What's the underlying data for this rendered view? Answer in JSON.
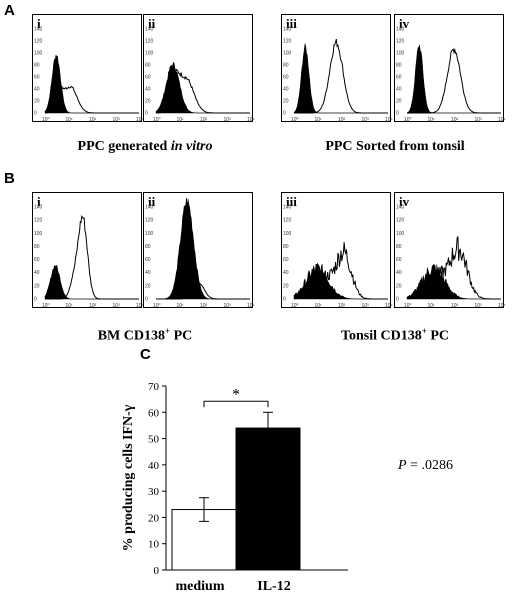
{
  "panel_a": {
    "letter": "A",
    "plots": [
      {
        "label": "i"
      },
      {
        "label": "ii"
      },
      {
        "label": "iii"
      },
      {
        "label": "iv"
      }
    ],
    "caption_left_prefix": "PPC generated ",
    "caption_left_italic": "in vitro",
    "caption_right": "PPC Sorted from tonsil"
  },
  "panel_b": {
    "letter": "B",
    "plots": [
      {
        "label": "i"
      },
      {
        "label": "ii"
      },
      {
        "label": "iii"
      },
      {
        "label": "iv"
      }
    ],
    "caption_left_prefix": "BM CD138",
    "caption_left_sup": "+",
    "caption_left_suffix": " PC",
    "caption_right_prefix": "Tonsil CD138",
    "caption_right_sup": "+",
    "caption_right_suffix": " PC"
  },
  "hist_axes": {
    "y_ticks": [
      "0",
      "20",
      "40",
      "60",
      "80",
      "100",
      "120",
      "140"
    ],
    "x_ticks": [
      "10⁰",
      "10¹",
      "10²",
      "10³",
      "10⁴"
    ]
  },
  "chart_data": {
    "type": "bar",
    "letter": "C",
    "categories": [
      "medium",
      "IL-12"
    ],
    "values": [
      23,
      54
    ],
    "errors": [
      4.5,
      6
    ],
    "bar_colors": [
      "#ffffff",
      "#000000"
    ],
    "ylabel": "% producing cells IFN-γ",
    "ylim": [
      0,
      70
    ],
    "yticks": [
      0,
      10,
      20,
      30,
      40,
      50,
      60,
      70
    ],
    "significance": "*",
    "annotation": "P = .0286"
  }
}
